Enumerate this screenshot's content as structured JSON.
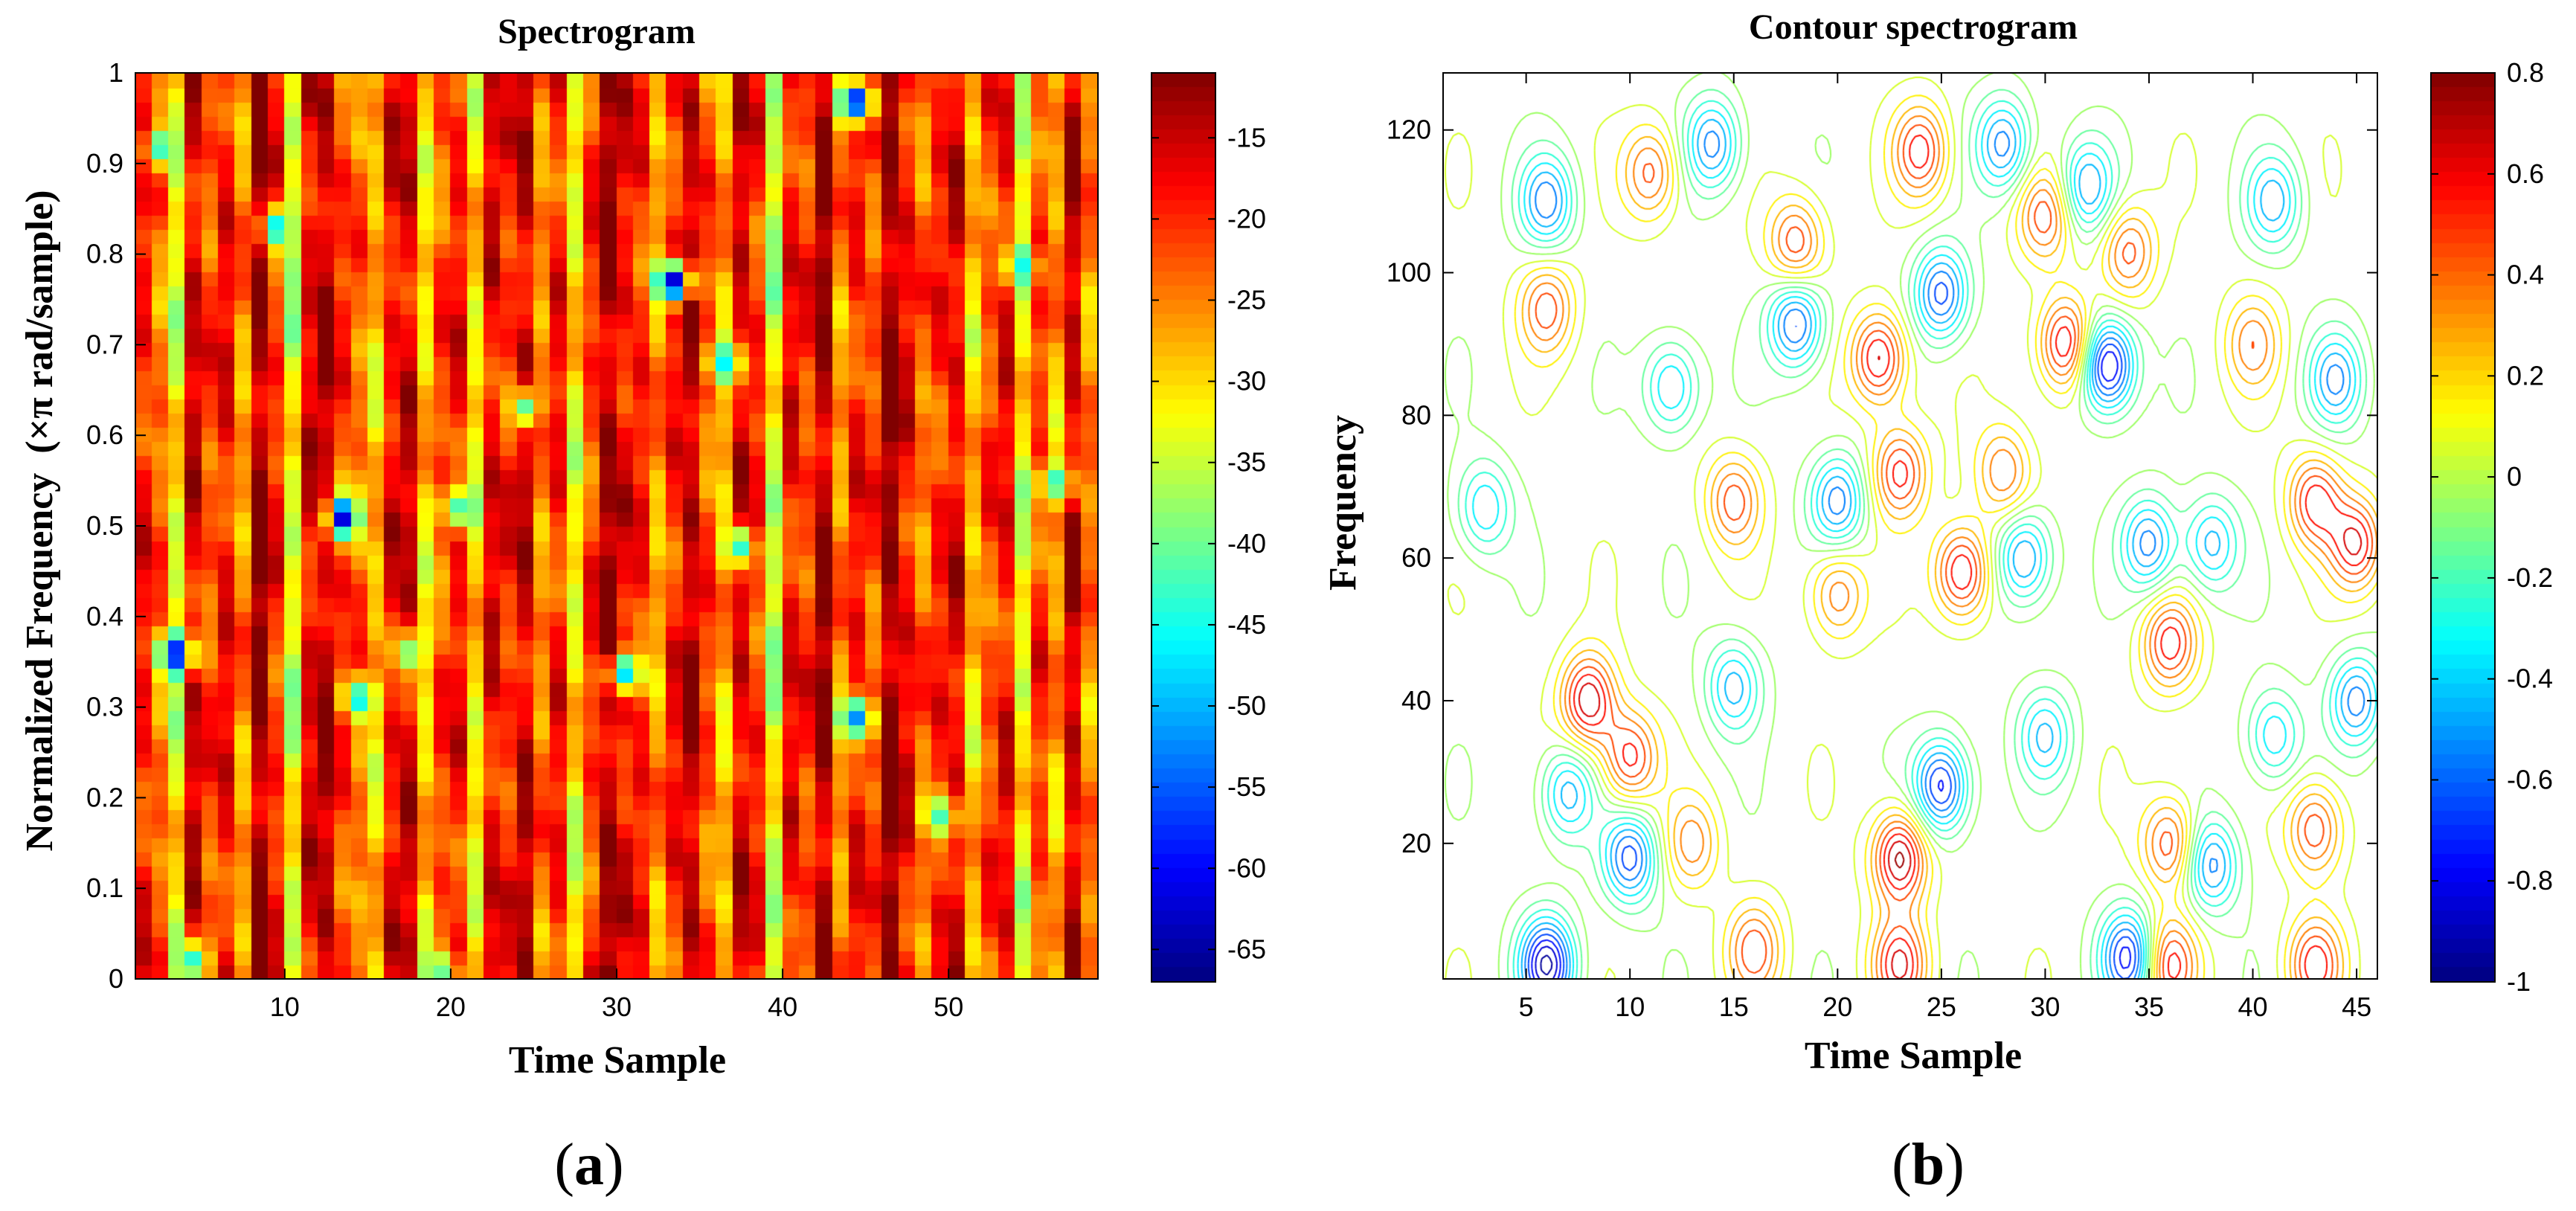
{
  "chart_data": [
    {
      "type": "heatmap",
      "panel_label": "a",
      "title": "Spectrogram",
      "xlabel": "Time Sample",
      "ylabel": "Normalized Frequency  (×π rad/sample)",
      "xlim": [
        1,
        59
      ],
      "ylim": [
        0,
        1
      ],
      "x_ticks": [
        10,
        20,
        30,
        40,
        50
      ],
      "y_ticks": [
        "0",
        "0.1",
        "0.2",
        "0.3",
        "0.4",
        "0.5",
        "0.6",
        "0.7",
        "0.8",
        "0.9",
        "1"
      ],
      "y_tick_values": [
        0,
        0.1,
        0.2,
        0.3,
        0.4,
        0.5,
        0.6,
        0.7,
        0.8,
        0.9,
        1
      ],
      "colorbar": {
        "range": [
          -67,
          -11
        ],
        "ticks": [
          -15,
          -20,
          -25,
          -30,
          -35,
          -40,
          -45,
          -50,
          -55,
          -60,
          -65
        ],
        "colormap": "jet"
      },
      "n_time": 58,
      "n_freq": 64,
      "column_base_db": [
        -19,
        -24,
        -33,
        -16,
        -22,
        -18,
        -26,
        -12,
        -20,
        -34,
        -17,
        -14,
        -21,
        -24,
        -29,
        -18,
        -16,
        -30,
        -22,
        -19,
        -31,
        -17,
        -20,
        -15,
        -25,
        -19,
        -32,
        -21,
        -13,
        -18,
        -20,
        -27,
        -19,
        -14,
        -22,
        -28,
        -16,
        -20,
        -35,
        -18,
        -21,
        -13,
        -26,
        -19,
        -22,
        -12,
        -18,
        -24,
        -20,
        -17,
        -29,
        -22,
        -18,
        -33,
        -21,
        -27,
        -15,
        -25
      ],
      "low_spots": [
        {
          "t": 3,
          "f": 0.36,
          "db": -60
        },
        {
          "t": 13,
          "f": 0.51,
          "db": -62
        },
        {
          "t": 33,
          "f": 0.77,
          "db": -63
        },
        {
          "t": 44,
          "f": 0.97,
          "db": -60
        },
        {
          "t": 44,
          "f": 0.29,
          "db": -52
        },
        {
          "t": 30,
          "f": 0.34,
          "db": -48
        },
        {
          "t": 9,
          "f": 0.83,
          "db": -47
        },
        {
          "t": 2,
          "f": 0.92,
          "db": -44
        },
        {
          "t": 20,
          "f": 0.52,
          "db": -42
        },
        {
          "t": 36,
          "f": 0.68,
          "db": -46
        },
        {
          "t": 14,
          "f": 0.31,
          "db": -46
        },
        {
          "t": 54,
          "f": 0.79,
          "db": -45
        },
        {
          "t": 56,
          "f": 0.55,
          "db": -43
        },
        {
          "t": 24,
          "f": 0.63,
          "db": -41
        },
        {
          "t": 37,
          "f": 0.48,
          "db": -44
        },
        {
          "t": 17,
          "f": 0.36,
          "db": -40
        },
        {
          "t": 49,
          "f": 0.18,
          "db": -42
        },
        {
          "t": 4,
          "f": 0.02,
          "db": -44
        },
        {
          "t": 19,
          "f": 0.01,
          "db": -40
        }
      ]
    },
    {
      "type": "contour",
      "panel_label": "b",
      "title": "Contour spectrogram",
      "xlabel": "Time Sample",
      "ylabel": "Frequency",
      "xlim": [
        1,
        46
      ],
      "ylim": [
        1,
        128
      ],
      "x_ticks": [
        5,
        10,
        15,
        20,
        25,
        30,
        35,
        40,
        45
      ],
      "y_ticks": [
        20,
        40,
        60,
        80,
        100,
        120
      ],
      "colorbar": {
        "range": [
          -1,
          0.8
        ],
        "ticks": [
          "0.8",
          "0.6",
          "0.4",
          "0.2",
          "0",
          "-0.2",
          "-0.4",
          "-0.6",
          "-0.8",
          "-1"
        ],
        "tick_values": [
          0.8,
          0.6,
          0.4,
          0.2,
          0,
          -0.2,
          -0.4,
          -0.6,
          -0.8,
          -1
        ],
        "colormap": "jet"
      },
      "peaks": [
        {
          "t": 8,
          "f": 40,
          "v": 0.75
        },
        {
          "t": 10,
          "f": 32,
          "v": 0.6
        },
        {
          "t": 23,
          "f": 18,
          "v": 0.8
        },
        {
          "t": 22,
          "f": 88,
          "v": 0.7
        },
        {
          "t": 26,
          "f": 58,
          "v": 0.7
        },
        {
          "t": 31,
          "f": 90,
          "v": 0.7
        },
        {
          "t": 36,
          "f": 48,
          "v": 0.6
        },
        {
          "t": 36,
          "f": 20,
          "v": 0.55
        },
        {
          "t": 43,
          "f": 68,
          "v": 0.6
        },
        {
          "t": 43,
          "f": 22,
          "v": 0.55
        },
        {
          "t": 45,
          "f": 62,
          "v": 0.65
        },
        {
          "t": 6,
          "f": 95,
          "v": 0.5
        },
        {
          "t": 11,
          "f": 114,
          "v": 0.5
        },
        {
          "t": 18,
          "f": 104,
          "v": 0.55
        },
        {
          "t": 24,
          "f": 117,
          "v": 0.6
        },
        {
          "t": 30,
          "f": 108,
          "v": 0.5
        },
        {
          "t": 34,
          "f": 103,
          "v": 0.5
        },
        {
          "t": 15,
          "f": 68,
          "v": 0.5
        },
        {
          "t": 23,
          "f": 72,
          "v": 0.6
        },
        {
          "t": 28,
          "f": 72,
          "v": 0.45
        },
        {
          "t": 20,
          "f": 55,
          "v": 0.45
        },
        {
          "t": 16,
          "f": 5,
          "v": 0.5
        },
        {
          "t": 23,
          "f": 3,
          "v": 0.65
        },
        {
          "t": 36,
          "f": 3,
          "v": 0.6
        },
        {
          "t": 43,
          "f": 3,
          "v": 0.6
        },
        {
          "t": 40,
          "f": 90,
          "v": 0.4
        },
        {
          "t": 13,
          "f": 20,
          "v": 0.4
        }
      ],
      "troughs": [
        {
          "t": 33,
          "f": 87,
          "v": -0.95
        },
        {
          "t": 6,
          "f": 3,
          "v": -0.95
        },
        {
          "t": 25,
          "f": 28,
          "v": -0.8
        },
        {
          "t": 10,
          "f": 18,
          "v": -0.7
        },
        {
          "t": 18,
          "f": 93,
          "v": -0.7
        },
        {
          "t": 25,
          "f": 97,
          "v": -0.7
        },
        {
          "t": 34,
          "f": 4,
          "v": -0.8
        },
        {
          "t": 29,
          "f": 60,
          "v": -0.6
        },
        {
          "t": 6,
          "f": 110,
          "v": -0.6
        },
        {
          "t": 14,
          "f": 118,
          "v": -0.6
        },
        {
          "t": 28,
          "f": 118,
          "v": -0.6
        },
        {
          "t": 32,
          "f": 112,
          "v": -0.55
        },
        {
          "t": 35,
          "f": 62,
          "v": -0.6
        },
        {
          "t": 38,
          "f": 17,
          "v": -0.6
        },
        {
          "t": 45,
          "f": 40,
          "v": -0.6
        },
        {
          "t": 44,
          "f": 85,
          "v": -0.55
        },
        {
          "t": 41,
          "f": 110,
          "v": -0.5
        },
        {
          "t": 7,
          "f": 27,
          "v": -0.5
        },
        {
          "t": 12,
          "f": 84,
          "v": -0.5
        },
        {
          "t": 20,
          "f": 68,
          "v": -0.6
        },
        {
          "t": 15,
          "f": 42,
          "v": -0.5
        },
        {
          "t": 30,
          "f": 35,
          "v": -0.45
        },
        {
          "t": 41,
          "f": 35,
          "v": -0.45
        },
        {
          "t": 3,
          "f": 67,
          "v": -0.45
        },
        {
          "t": 38,
          "f": 62,
          "v": -0.5
        }
      ]
    }
  ]
}
